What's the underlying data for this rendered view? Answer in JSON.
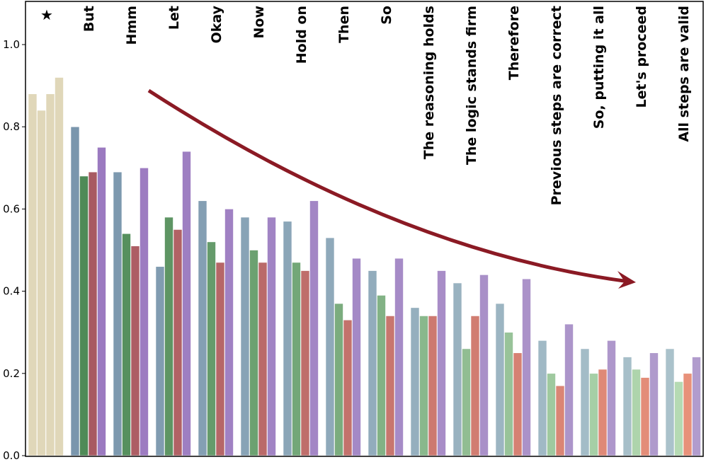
{
  "chart_data": {
    "type": "bar",
    "title": "",
    "xlabel": "",
    "ylabel": "",
    "ylim": [
      0,
      1.1
    ],
    "yticks": [
      "0.0",
      "0.2",
      "0.4",
      "0.6",
      "0.8",
      "1.0"
    ],
    "grid": false,
    "legend": "none",
    "categories": [
      "★",
      "But",
      "Hmm",
      "Let",
      "Okay",
      "Now",
      "Hold on",
      "Then",
      "So",
      "The reasoning holds",
      "The logic stands firm",
      "Therefore",
      "Previous steps are correct",
      "So, putting it all",
      "Let's proceed",
      "All steps are valid"
    ],
    "series": [
      {
        "values": [
          0.88,
          0.8,
          0.69,
          0.46,
          0.62,
          0.58,
          0.57,
          0.53,
          0.45,
          0.36,
          0.42,
          0.37,
          0.28,
          0.26,
          0.24,
          0.26
        ]
      },
      {
        "values": [
          0.84,
          0.68,
          0.54,
          0.58,
          0.52,
          0.5,
          0.47,
          0.37,
          0.39,
          0.34,
          0.26,
          0.3,
          0.2,
          0.2,
          0.21,
          0.18
        ]
      },
      {
        "values": [
          0.88,
          0.69,
          0.51,
          0.55,
          0.47,
          0.47,
          0.45,
          0.33,
          0.34,
          0.34,
          0.34,
          0.25,
          0.17,
          0.21,
          0.19,
          0.2
        ]
      },
      {
        "values": [
          0.92,
          0.75,
          0.7,
          0.74,
          0.6,
          0.58,
          0.62,
          0.48,
          0.48,
          0.45,
          0.44,
          0.43,
          0.32,
          0.28,
          0.25,
          0.24
        ]
      }
    ],
    "colors": {
      "reference": "#e0d7b9",
      "series_start": [
        "#7a96ad",
        "#4f8a57",
        "#a85a62",
        "#9b7ac0"
      ],
      "series_end": [
        "#aac2cb",
        "#b5dab3",
        "#e8917a",
        "#b19ccd"
      ],
      "arrow": "#8b1a24"
    },
    "annotation": "decreasing-trend-arrow"
  }
}
